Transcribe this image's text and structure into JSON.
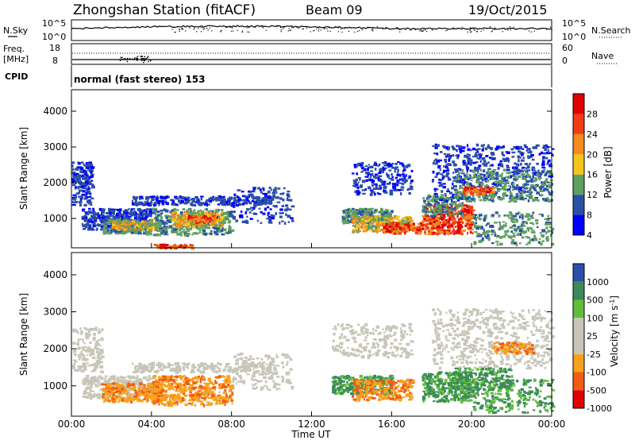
{
  "header": {
    "station": "Zhongshan Station (fitACF)",
    "beam": "Beam 09",
    "date": "19/Oct/2015"
  },
  "panels": {
    "sky": {
      "left_label": "N.Sky",
      "left_ticks": [
        "10^5",
        "10^0"
      ],
      "right_label": "N.Search",
      "right_ticks": [
        "10^5",
        "10^0"
      ]
    },
    "freq": {
      "left_label_1": "Freq.",
      "left_label_2": "[MHz]",
      "left_ticks": [
        "18",
        "8"
      ],
      "right_label": "Nave",
      "right_ticks": [
        "60",
        "0"
      ]
    },
    "cpid": {
      "label": "CPID",
      "text": "normal (fast stereo) 153"
    }
  },
  "chart_data": [
    {
      "type": "heatmap",
      "quantity": "Power",
      "ylabel": "Slant Range [km]",
      "yticks": [
        "4000",
        "3000",
        "2000",
        "1000"
      ],
      "ylim": [
        180,
        4600
      ],
      "colorbar": {
        "label": "Power [dB]",
        "ticks": [
          "28",
          "24",
          "20",
          "16",
          "12",
          "8",
          "4"
        ],
        "colors": [
          "#0000ff",
          "#2b4fa8",
          "#5fa060",
          "#f7c51a",
          "#f28b1e",
          "#f13c16",
          "#e00000"
        ]
      }
    },
    {
      "type": "heatmap",
      "quantity": "Velocity",
      "ylabel": "Slant Range [km]",
      "yticks": [
        "4000",
        "3000",
        "2000",
        "1000"
      ],
      "ylim": [
        180,
        4600
      ],
      "colorbar": {
        "label": "Velocity [m s",
        "label_exp": "-1",
        "label_end": "]",
        "ticks": [
          "1000",
          "500",
          "100",
          "25",
          "-25",
          "-100",
          "-500",
          "-1000"
        ],
        "colors": [
          "#e00000",
          "#f25c16",
          "#f7a21c",
          "#c8c6b8",
          "#c8c6b8",
          "#5fbf3a",
          "#3c8a5a",
          "#2b4fa8"
        ]
      }
    }
  ],
  "time_axis": {
    "label": "Time UT",
    "ticks": [
      "00:00",
      "04:00",
      "08:00",
      "12:00",
      "16:00",
      "20:00",
      "00:00"
    ],
    "xlim": [
      "00:00",
      "24:00"
    ]
  }
}
